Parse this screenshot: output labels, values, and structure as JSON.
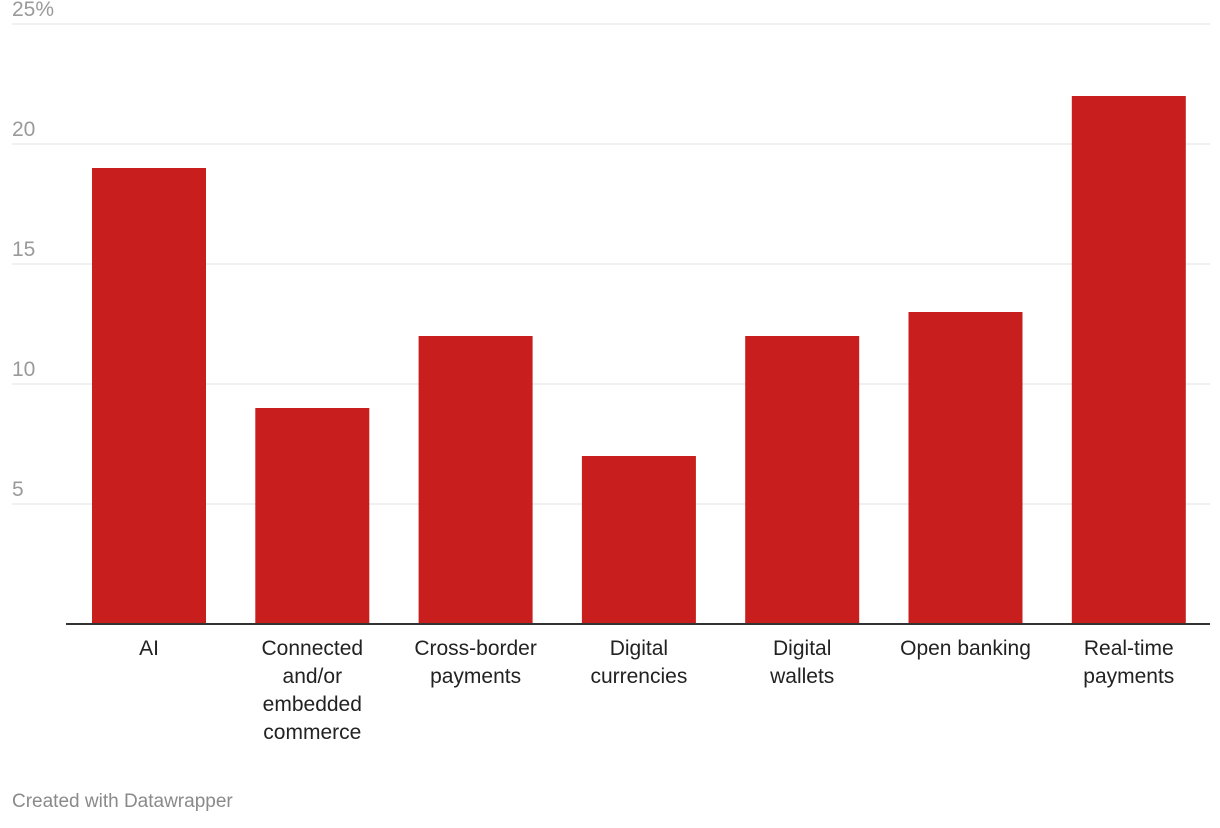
{
  "chart_data": {
    "type": "bar",
    "categories": [
      [
        "AI"
      ],
      [
        "Connected",
        "and/or",
        "embedded",
        "commerce"
      ],
      [
        "Cross-border",
        "payments"
      ],
      [
        "Digital",
        "currencies"
      ],
      [
        "Digital",
        "wallets"
      ],
      [
        "Open banking"
      ],
      [
        "Real-time",
        "payments"
      ]
    ],
    "values": [
      19,
      9,
      12,
      7,
      12,
      13,
      22
    ],
    "yticks": [
      "5",
      "10",
      "15",
      "20",
      "25%"
    ],
    "ytick_values": [
      5,
      10,
      15,
      20,
      25
    ],
    "ylim": [
      0,
      25
    ],
    "grid": true,
    "bar_color": "#c81e1e"
  },
  "credit": "Created with Datawrapper"
}
